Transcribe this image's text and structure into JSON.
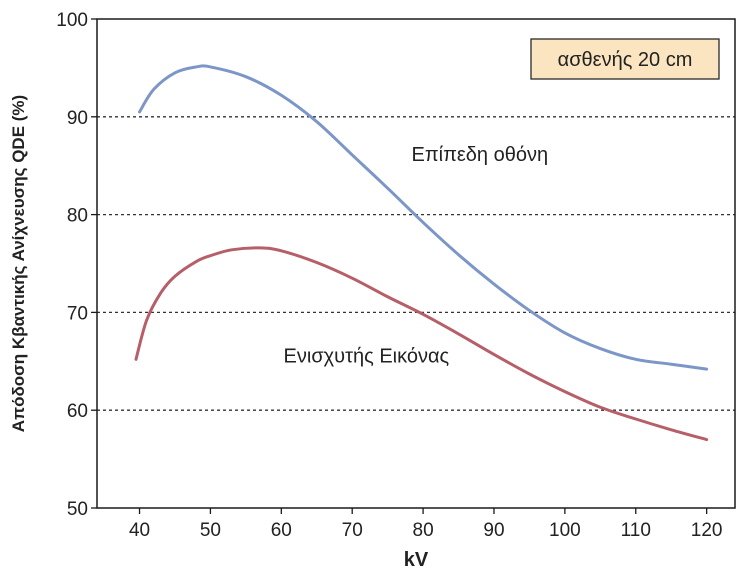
{
  "chart_data": {
    "type": "line",
    "title": "",
    "xlabel": "kV",
    "ylabel": "Απόδοση Κβαντικής Ανίχνευσης QDE (%)",
    "xlim": [
      34,
      124
    ],
    "ylim": [
      50,
      100
    ],
    "xticks": [
      40,
      50,
      60,
      70,
      80,
      90,
      100,
      110,
      120
    ],
    "yticks": [
      50,
      60,
      70,
      80,
      90,
      100
    ],
    "grid": "horizontal dashed at 60, 70, 80, 90",
    "legend": "none",
    "series": [
      {
        "name": "Επίπεδη οθόνη",
        "color": "#7b96c7",
        "x": [
          40,
          42,
          45,
          48,
          50,
          55,
          60,
          65,
          70,
          75,
          80,
          85,
          90,
          95,
          100,
          105,
          110,
          115,
          120
        ],
        "y": [
          90.5,
          92.8,
          94.5,
          95.1,
          95.1,
          94.1,
          92.2,
          89.5,
          86.1,
          82.7,
          79.2,
          75.9,
          72.9,
          70.2,
          67.9,
          66.3,
          65.2,
          64.7,
          64.2
        ]
      },
      {
        "name": "Ενισχυτής Εικόνας",
        "color": "#b65f68",
        "x": [
          39.5,
          41,
          43,
          45,
          48,
          50,
          53,
          57,
          60,
          65,
          70,
          75,
          80,
          85,
          90,
          95,
          100,
          105,
          110,
          115,
          120
        ],
        "y": [
          65.2,
          69.2,
          72.0,
          73.7,
          75.2,
          75.8,
          76.4,
          76.6,
          76.3,
          75.1,
          73.5,
          71.6,
          69.8,
          67.8,
          65.7,
          63.7,
          61.9,
          60.3,
          59.1,
          58.0,
          57.0
        ]
      }
    ],
    "annotations": [
      {
        "text": "Επίπεδη οθόνη",
        "x": 88,
        "y": 85.5
      },
      {
        "text": "Ενισχυτής Εικόνας",
        "x": 72,
        "y": 64.9
      }
    ],
    "inset_label": {
      "text": "ασθενής 20 cm",
      "fill": "#fbe5c1",
      "stroke": "#2a2a2a"
    },
    "axis_color": "#1a1a1a",
    "grid_color": "#333333"
  }
}
